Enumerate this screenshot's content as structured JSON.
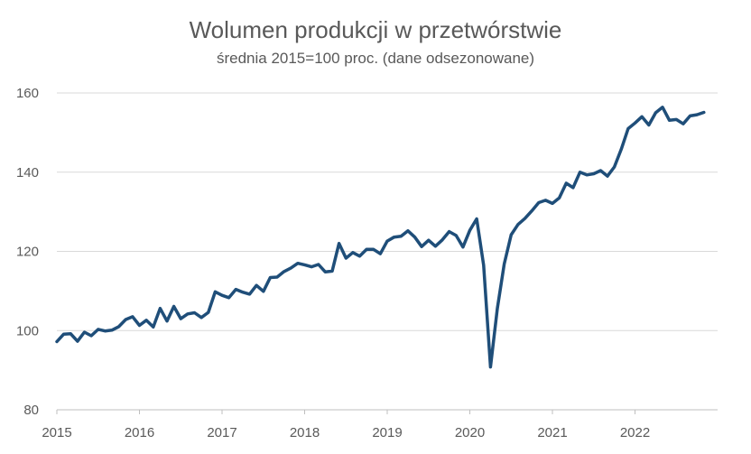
{
  "chart_data": {
    "type": "line",
    "title": "Wolumen produkcji w przetwórstwie",
    "subtitle": "średnia 2015=100 proc. (dane odsezonowane)",
    "xlabel": "",
    "ylabel": "",
    "ylim": [
      80,
      160
    ],
    "yticks": [
      "80",
      "100",
      "120",
      "140",
      "160"
    ],
    "xticks": [
      "2015",
      "2016",
      "2017",
      "2018",
      "2019",
      "2020",
      "2021",
      "2022"
    ],
    "grid": true,
    "legend": "none",
    "line_color": "#1f4e79",
    "x_start": "2015-01",
    "x_frequency": "monthly",
    "series": [
      {
        "values": [
          97.2,
          99.1,
          99.2,
          97.3,
          99.6,
          98.7,
          100.3,
          99.9,
          100.1,
          101.0,
          102.8,
          103.5,
          101.3,
          102.6,
          100.9,
          105.6,
          102.4,
          106.1,
          103.0,
          104.2,
          104.5,
          103.3,
          104.6,
          109.8,
          108.9,
          108.3,
          110.4,
          109.7,
          109.2,
          111.4,
          109.9,
          113.4,
          113.5,
          114.9,
          115.8,
          117.0,
          116.6,
          116.1,
          116.7,
          114.8,
          115.0,
          122.0,
          118.3,
          119.7,
          118.8,
          120.5,
          120.5,
          119.4,
          122.6,
          123.6,
          123.8,
          125.2,
          123.6,
          121.2,
          122.8,
          121.3,
          122.9,
          125.0,
          124.0,
          121.1,
          125.3,
          128.2,
          116.5,
          90.8,
          105.6,
          116.8,
          124.2,
          126.8,
          128.3,
          130.2,
          132.3,
          132.9,
          132.1,
          133.5,
          137.2,
          136.1,
          140.0,
          139.3,
          139.6,
          140.4,
          139.0,
          141.3,
          145.8,
          151.0,
          152.4,
          154.0,
          151.9,
          155.0,
          156.4,
          153.1,
          153.3,
          152.2,
          154.2,
          154.5,
          155.1
        ]
      }
    ]
  }
}
